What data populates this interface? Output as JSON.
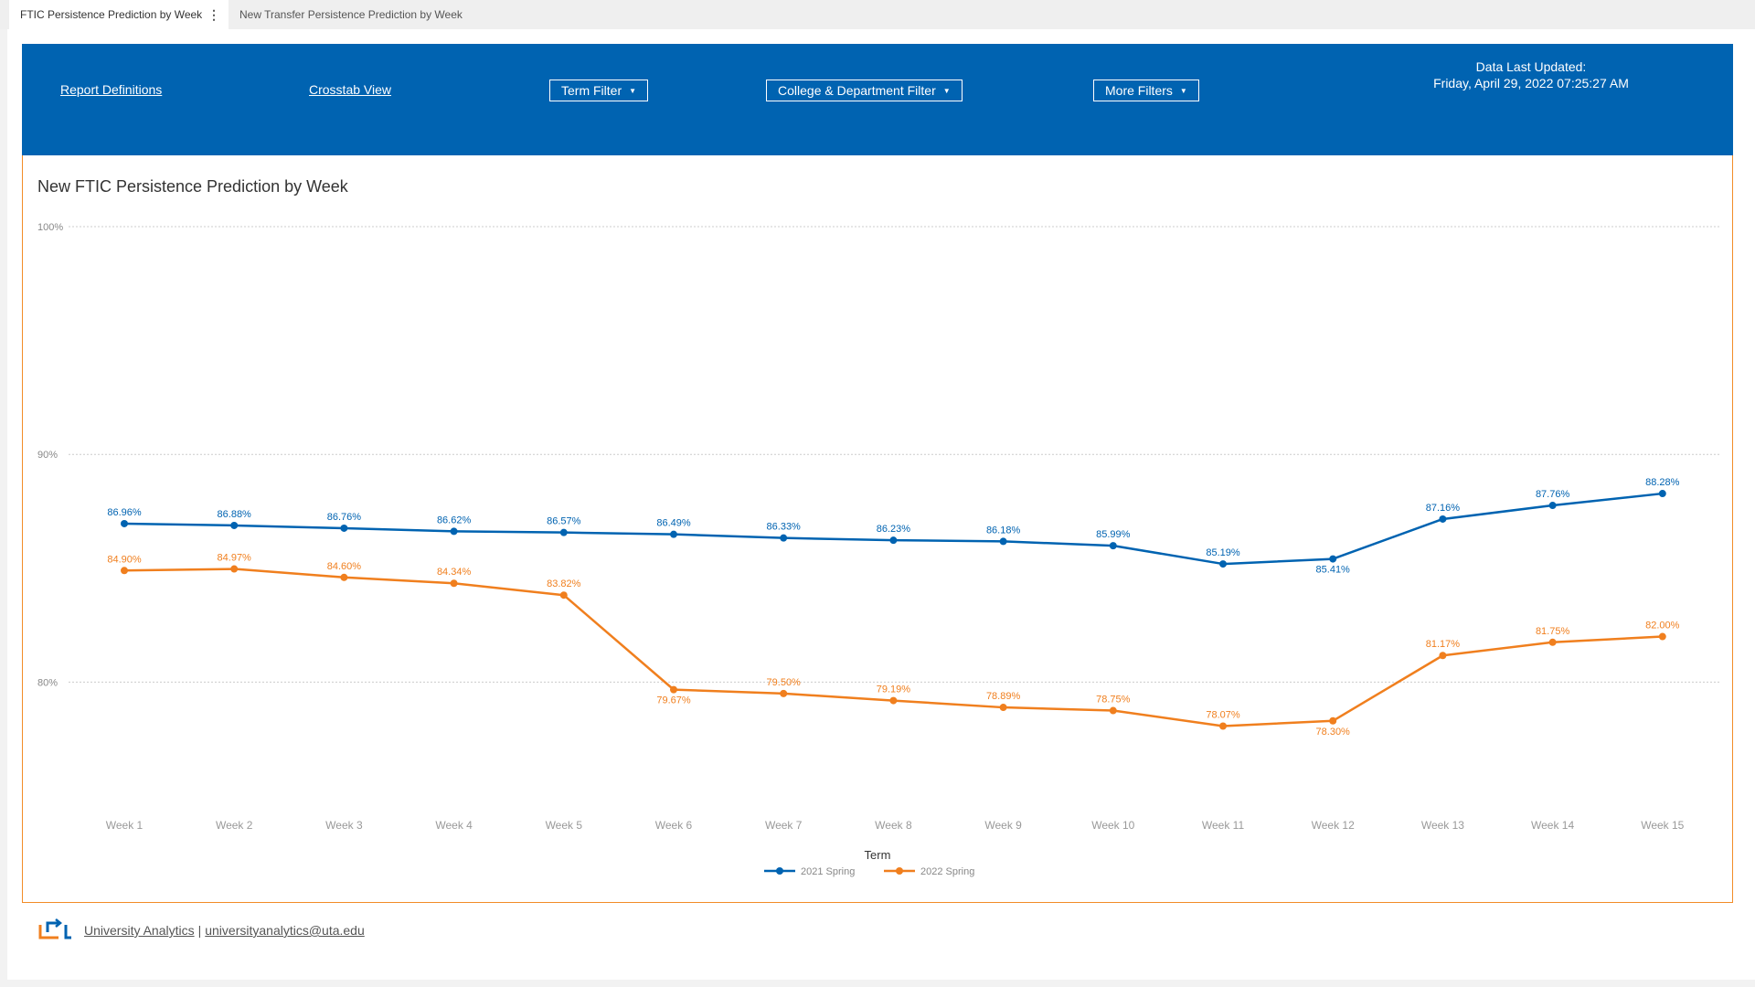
{
  "tabs": [
    {
      "label": "FTIC Persistence Prediction by Week"
    },
    {
      "label": "New Transfer Persistence Prediction by Week"
    }
  ],
  "header": {
    "report_definitions": "Report Definitions",
    "crosstab_view": "Crosstab View",
    "term_filter": "Term Filter",
    "college_filter": "College & Department Filter",
    "more_filters": "More Filters",
    "updated_label": "Data Last Updated:",
    "updated_value": "Friday, April 29, 2022 07:25:27 AM",
    "background_color": "#0063b1"
  },
  "chart_data": {
    "type": "line",
    "title": "New FTIC Persistence Prediction by Week",
    "legend_title": "Term",
    "legend_position": "bottom-center",
    "categories": [
      "Week 1",
      "Week 2",
      "Week 3",
      "Week 4",
      "Week 5",
      "Week 6",
      "Week 7",
      "Week 8",
      "Week 9",
      "Week 10",
      "Week 11",
      "Week 12",
      "Week 13",
      "Week 14",
      "Week 15"
    ],
    "y_ticks": [
      "100%",
      "90%",
      "80%"
    ],
    "y_tick_values": [
      100,
      90,
      80
    ],
    "ylim": [
      75,
      100
    ],
    "grid": true,
    "series": [
      {
        "name": "2021 Spring",
        "color": "#0063b1",
        "values": [
          86.96,
          86.88,
          86.76,
          86.62,
          86.57,
          86.49,
          86.33,
          86.23,
          86.18,
          85.99,
          85.19,
          85.41,
          87.16,
          87.76,
          88.28
        ],
        "labels": [
          "86.96%",
          "86.88%",
          "86.76%",
          "86.62%",
          "86.57%",
          "86.49%",
          "86.33%",
          "86.23%",
          "86.18%",
          "85.99%",
          "85.19%",
          "85.41%",
          "87.16%",
          "87.76%",
          "88.28%"
        ]
      },
      {
        "name": "2022 Spring",
        "color": "#f07f1e",
        "values": [
          84.9,
          84.97,
          84.6,
          84.34,
          83.82,
          79.67,
          79.5,
          79.19,
          78.89,
          78.75,
          78.07,
          78.3,
          81.17,
          81.75,
          82.0
        ],
        "labels": [
          "84.90%",
          "84.97%",
          "84.60%",
          "84.34%",
          "83.82%",
          "79.67%",
          "79.50%",
          "79.19%",
          "78.89%",
          "78.75%",
          "78.07%",
          "78.30%",
          "81.17%",
          "81.75%",
          "82.00%"
        ]
      }
    ]
  },
  "footer": {
    "org_link": "University Analytics",
    "separator": "|",
    "email_link": "universityanalytics@uta.edu"
  }
}
